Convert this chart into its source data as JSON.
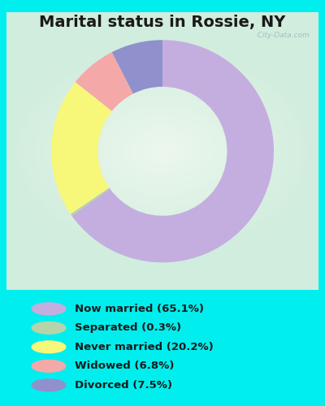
{
  "title": "Marital status in Rossie, NY",
  "title_fontsize": 14,
  "title_fontweight": "bold",
  "background_outer": "#00EEEE",
  "categories": [
    "Now married",
    "Separated",
    "Never married",
    "Widowed",
    "Divorced"
  ],
  "values": [
    65.1,
    0.3,
    20.2,
    6.8,
    7.5
  ],
  "colors": [
    "#C4AEE0",
    "#B5D4AA",
    "#F7F77A",
    "#F5A8A8",
    "#9090CC"
  ],
  "legend_labels": [
    "Now married (65.1%)",
    "Separated (0.3%)",
    "Never married (20.2%)",
    "Widowed (6.8%)",
    "Divorced (7.5%)"
  ],
  "donut_width": 0.42,
  "start_angle": 90,
  "watermark": "  City-Data.com"
}
